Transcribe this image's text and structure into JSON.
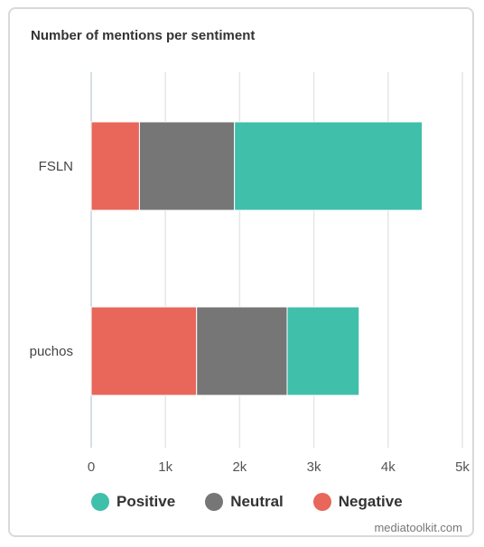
{
  "chart_data": {
    "type": "bar",
    "orientation": "horizontal",
    "stacked": true,
    "title": "Number of mentions per sentiment",
    "categories": [
      "FSLN",
      "puchos"
    ],
    "series": [
      {
        "name": "Negative",
        "color": "#e8675a",
        "values": [
          650,
          1420
        ]
      },
      {
        "name": "Neutral",
        "color": "#767676",
        "values": [
          1280,
          1220
        ]
      },
      {
        "name": "Positive",
        "color": "#40bfab",
        "values": [
          2530,
          970
        ]
      }
    ],
    "xlim": [
      0,
      5000
    ],
    "xticks": [
      0,
      1000,
      2000,
      3000,
      4000,
      5000
    ],
    "xtick_labels": [
      "0",
      "1k",
      "2k",
      "3k",
      "4k",
      "5k"
    ],
    "grid": true,
    "legend_position": "bottom"
  },
  "legend": [
    {
      "label": "Positive",
      "color": "#40bfab"
    },
    {
      "label": "Neutral",
      "color": "#767676"
    },
    {
      "label": "Negative",
      "color": "#e8675a"
    }
  ],
  "credit": "mediatoolkit.com"
}
